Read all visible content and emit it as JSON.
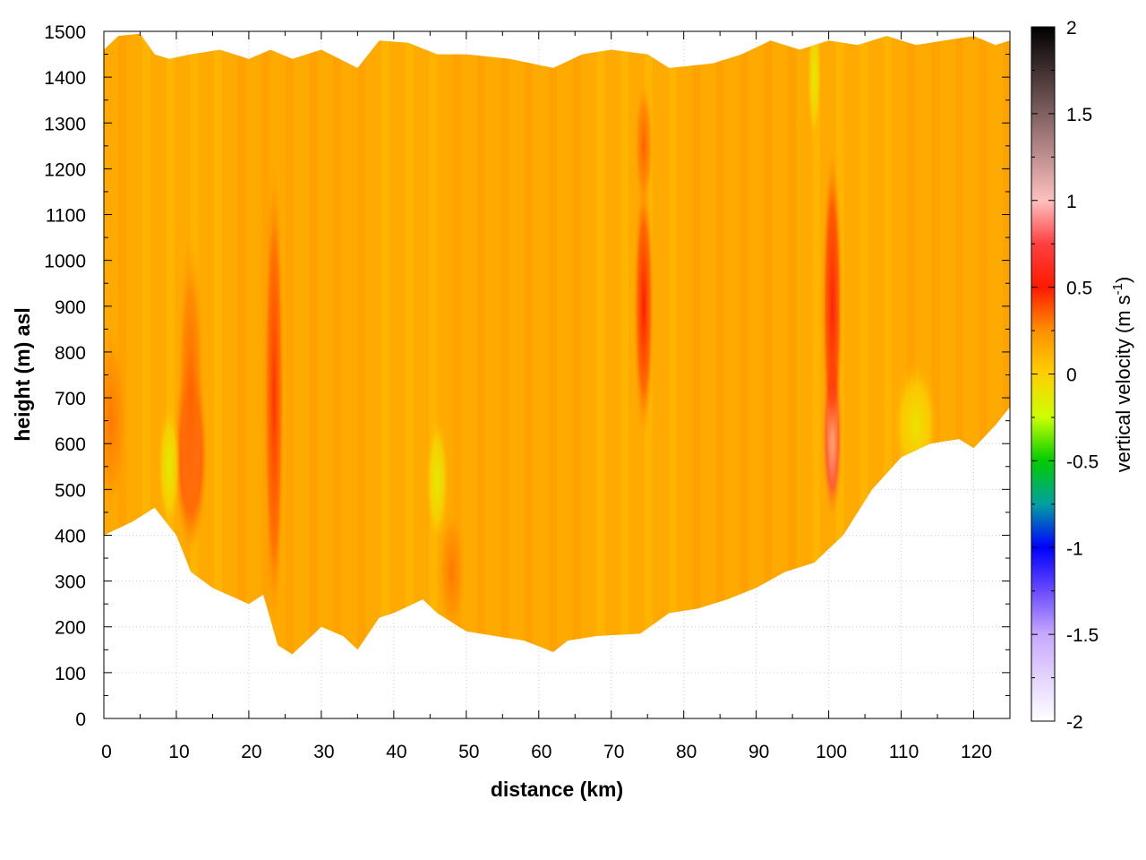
{
  "chart_data": {
    "type": "heatmap",
    "title": "",
    "xlabel": "distance (km)",
    "ylabel": "height (m) asl",
    "xlim": [
      0,
      125
    ],
    "ylim": [
      0,
      1500
    ],
    "x_ticks": [
      "0",
      "10",
      "20",
      "30",
      "40",
      "50",
      "60",
      "70",
      "80",
      "90",
      "100",
      "110",
      "120"
    ],
    "y_ticks": [
      "0",
      "100",
      "200",
      "300",
      "400",
      "500",
      "600",
      "700",
      "800",
      "900",
      "1000",
      "1100",
      "1200",
      "1300",
      "1400",
      "1500"
    ],
    "grid": true,
    "colorbar": {
      "label_main": "vertical velocity (m s",
      "label_sup": "-1",
      "label_close": ")",
      "range": [
        -2,
        2
      ],
      "ticks": [
        "2",
        "1.5",
        "1",
        "0.5",
        "0",
        "-0.5",
        "-1",
        "-1.5",
        "-2"
      ],
      "tick_values": [
        2,
        1.5,
        1,
        0.5,
        0,
        -0.5,
        -1,
        -1.5,
        -2
      ],
      "colors": [
        {
          "v": -2.0,
          "c": "#ffffff"
        },
        {
          "v": -1.5,
          "c": "#c8a8ff"
        },
        {
          "v": -1.25,
          "c": "#6a4bff"
        },
        {
          "v": -1.0,
          "c": "#0000ff"
        },
        {
          "v": -0.75,
          "c": "#00a0a0"
        },
        {
          "v": -0.5,
          "c": "#00cc00"
        },
        {
          "v": -0.25,
          "c": "#ccff00"
        },
        {
          "v": 0.0,
          "c": "#ffd000"
        },
        {
          "v": 0.25,
          "c": "#ff9000"
        },
        {
          "v": 0.5,
          "c": "#ff1a00"
        },
        {
          "v": 0.75,
          "c": "#ff4040"
        },
        {
          "v": 1.0,
          "c": "#ffc0c0"
        },
        {
          "v": 1.5,
          "c": "#806060"
        },
        {
          "v": 2.0,
          "c": "#000000"
        }
      ]
    },
    "background_velocity": 0.15,
    "bottom_boundary": [
      [
        0,
        400
      ],
      [
        4,
        430
      ],
      [
        7,
        460
      ],
      [
        10,
        400
      ],
      [
        12,
        320
      ],
      [
        15,
        285
      ],
      [
        20,
        250
      ],
      [
        22,
        270
      ],
      [
        24,
        160
      ],
      [
        26,
        140
      ],
      [
        30,
        200
      ],
      [
        33,
        180
      ],
      [
        35,
        150
      ],
      [
        38,
        220
      ],
      [
        40,
        230
      ],
      [
        44,
        260
      ],
      [
        46,
        230
      ],
      [
        50,
        190
      ],
      [
        54,
        180
      ],
      [
        58,
        170
      ],
      [
        62,
        145
      ],
      [
        64,
        170
      ],
      [
        68,
        180
      ],
      [
        74,
        185
      ],
      [
        78,
        230
      ],
      [
        82,
        240
      ],
      [
        86,
        260
      ],
      [
        90,
        285
      ],
      [
        94,
        320
      ],
      [
        98,
        340
      ],
      [
        102,
        400
      ],
      [
        106,
        500
      ],
      [
        110,
        570
      ],
      [
        114,
        600
      ],
      [
        118,
        610
      ],
      [
        120,
        590
      ],
      [
        123,
        640
      ],
      [
        125,
        680
      ]
    ],
    "top_boundary": [
      [
        0,
        1460
      ],
      [
        2,
        1490
      ],
      [
        5,
        1495
      ],
      [
        7,
        1450
      ],
      [
        9,
        1440
      ],
      [
        12,
        1450
      ],
      [
        16,
        1460
      ],
      [
        20,
        1440
      ],
      [
        23,
        1460
      ],
      [
        26,
        1440
      ],
      [
        30,
        1460
      ],
      [
        35,
        1420
      ],
      [
        38,
        1480
      ],
      [
        42,
        1475
      ],
      [
        46,
        1450
      ],
      [
        50,
        1450
      ],
      [
        56,
        1440
      ],
      [
        62,
        1420
      ],
      [
        66,
        1450
      ],
      [
        70,
        1460
      ],
      [
        75,
        1450
      ],
      [
        78,
        1420
      ],
      [
        84,
        1430
      ],
      [
        88,
        1450
      ],
      [
        92,
        1480
      ],
      [
        96,
        1460
      ],
      [
        100,
        1480
      ],
      [
        104,
        1470
      ],
      [
        108,
        1490
      ],
      [
        112,
        1470
      ],
      [
        116,
        1480
      ],
      [
        120,
        1490
      ],
      [
        123,
        1470
      ],
      [
        125,
        1480
      ]
    ],
    "features": [
      {
        "x": 12,
        "y": 580,
        "w": 1.5,
        "h": 180,
        "v": 0.75
      },
      {
        "x": 12,
        "y": 700,
        "w": 1.2,
        "h": 320,
        "v": 0.35
      },
      {
        "x": 23.5,
        "y": 700,
        "w": 0.9,
        "h": 450,
        "v": 0.45
      },
      {
        "x": 74.5,
        "y": 900,
        "w": 0.9,
        "h": 250,
        "v": 0.5
      },
      {
        "x": 74.5,
        "y": 1250,
        "w": 0.8,
        "h": 120,
        "v": 0.35
      },
      {
        "x": 100.5,
        "y": 620,
        "w": 0.9,
        "h": 160,
        "v": 1.0
      },
      {
        "x": 100.5,
        "y": 900,
        "w": 0.9,
        "h": 300,
        "v": 0.55
      },
      {
        "x": 1,
        "y": 650,
        "w": 1.5,
        "h": 180,
        "v": 0.3
      },
      {
        "x": 48,
        "y": 320,
        "w": 1.2,
        "h": 120,
        "v": 0.3
      },
      {
        "x": 9,
        "y": 550,
        "w": 1.0,
        "h": 120,
        "v": -0.15
      },
      {
        "x": 46,
        "y": 520,
        "w": 1.0,
        "h": 120,
        "v": -0.15
      },
      {
        "x": 98,
        "y": 1400,
        "w": 0.6,
        "h": 120,
        "v": -0.15
      },
      {
        "x": 112,
        "y": 640,
        "w": 2.0,
        "h": 120,
        "v": -0.1
      }
    ]
  }
}
